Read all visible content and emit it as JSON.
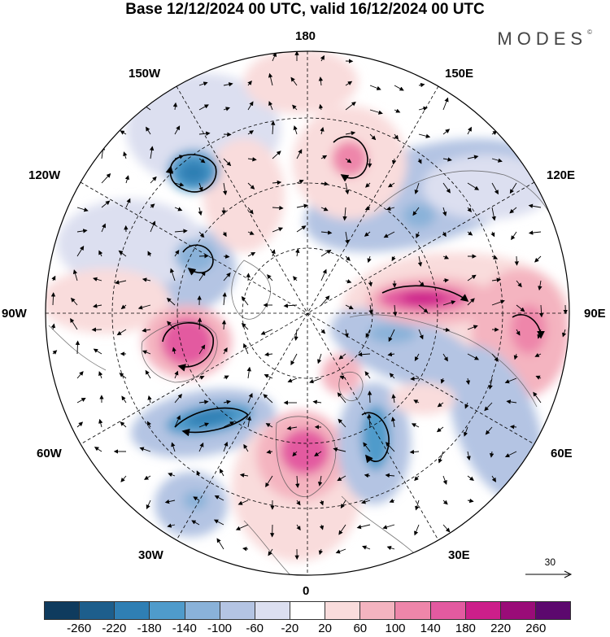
{
  "title": "Base 12/12/2024 00 UTC, valid 16/12/2024 00 UTC",
  "brand": "MODES",
  "longitude_labels": {
    "top": "180",
    "top_left": "150W",
    "top_right": "150E",
    "upper_left": "120W",
    "upper_right": "120E",
    "left": "90W",
    "right": "90E",
    "lower_left": "60W",
    "lower_right": "60E",
    "bottom_left": "30W",
    "bottom_right": "30E",
    "bottom": "0"
  },
  "reference_vector": {
    "label": "30"
  },
  "colorbar": {
    "colors": [
      "#0f3b5e",
      "#1d5e8c",
      "#2f7fb4",
      "#4f9bcb",
      "#8ab2d9",
      "#b4c4e3",
      "#dcdff0",
      "#ffffff",
      "#f9dcdc",
      "#f4b4c0",
      "#ee86aa",
      "#e35aa0",
      "#cc1f8a",
      "#9a0c78",
      "#5c086e"
    ],
    "tick_labels": [
      "-260",
      "-220",
      "-180",
      "-140",
      "-100",
      "-60",
      "-20",
      "20",
      "60",
      "100",
      "140",
      "180",
      "220",
      "260"
    ]
  }
}
